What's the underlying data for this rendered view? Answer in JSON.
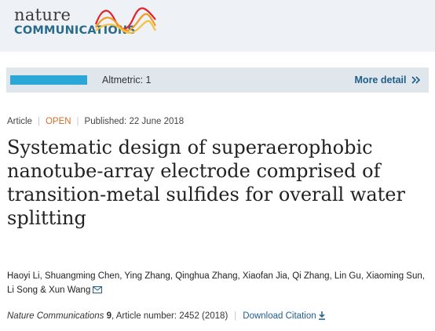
{
  "header": {
    "logo_line1": "nature",
    "logo_line2": "COMMUNICATIONS",
    "wave_colors": [
      "#e0252c",
      "#f39a1f",
      "#f6c23a"
    ]
  },
  "altmetric": {
    "label": "Altmetric: 1",
    "more_detail": "More detail",
    "more_icon": "double-chevron-right-icon",
    "bar_color": "#29a8d8"
  },
  "article": {
    "type": "Article",
    "access": "OPEN",
    "published": "Published: 22 June 2018",
    "title": "Systematic design of superaerophobic nanotube-array electrode comprised of transition-metal sulfides for overall water splitting",
    "authors": [
      "Haoyi Li",
      "Shuangming Chen",
      "Ying Zhang",
      "Qinghua Zhang",
      "Xiaofan Jia",
      "Qi Zhang",
      "Lin Gu",
      "Xiaoming Sun",
      "Li Song",
      "Xun Wang"
    ],
    "author_sep": ", ",
    "author_last_sep": " & ",
    "mail_icon": "envelope-icon"
  },
  "citation": {
    "journal": "Nature Communications",
    "volume": "9",
    "article_number": ", Article number: 2452 (2018)",
    "download": "Download Citation",
    "download_icon": "download-icon"
  }
}
